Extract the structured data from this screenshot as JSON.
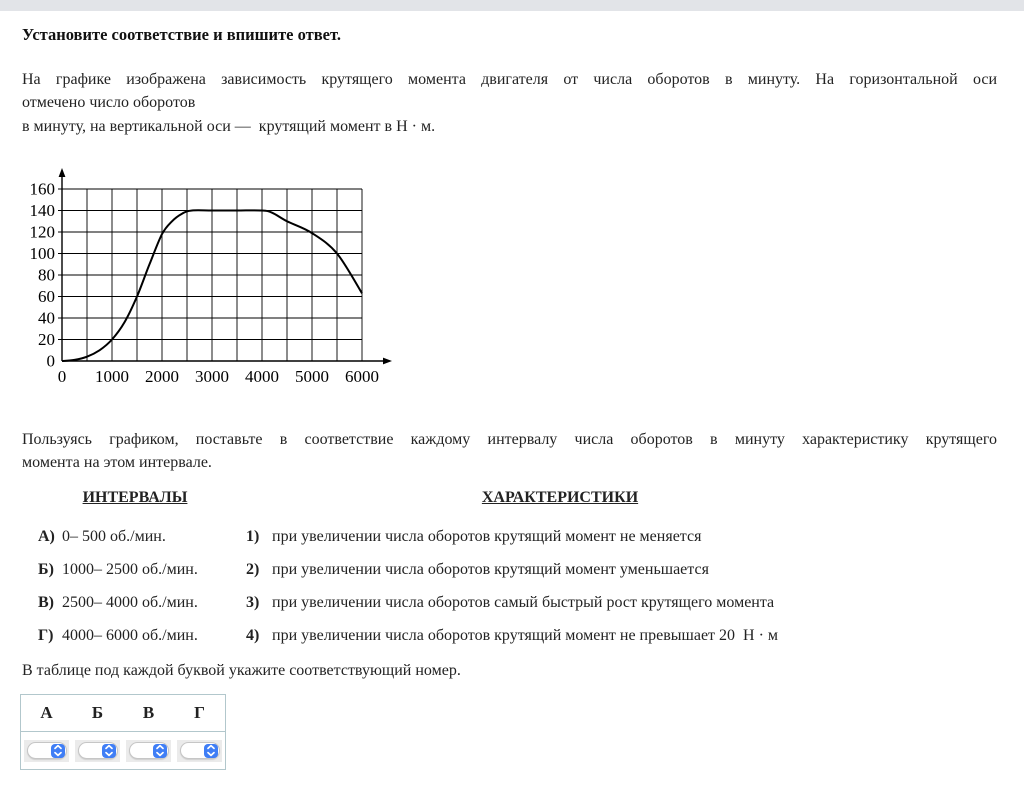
{
  "page": {
    "top_bar_color": "#e2e4e8",
    "background": "#ffffff",
    "accent_blue": "#3f7ef6",
    "table_border": "#b2c7cc"
  },
  "title": "Установите соответствие и впишите ответ.",
  "intro": {
    "line1": "На графике изображена зависимость крутящего момента двигателя от числа оборотов в минуту. На горизонтальной оси",
    "line2": "отмечено число оборотов",
    "line3": "в минуту, на вертикальной оси —  крутящий момент в Н · м."
  },
  "chart_data": {
    "type": "line",
    "title": "",
    "xlabel": "",
    "ylabel": "",
    "xlim": [
      0,
      6000
    ],
    "ylim": [
      0,
      160
    ],
    "x_ticks": [
      0,
      1000,
      2000,
      3000,
      4000,
      5000,
      6000
    ],
    "y_ticks": [
      0,
      20,
      40,
      60,
      80,
      100,
      120,
      140,
      160
    ],
    "x_grid_step": 500,
    "y_grid_step": 20,
    "grid": true,
    "legend": false,
    "series": [
      {
        "name": "крутящий момент, Н·м",
        "x": [
          0,
          250,
          500,
          750,
          1000,
          1250,
          1500,
          1750,
          2000,
          2200,
          2400,
          2600,
          3000,
          3500,
          4000,
          4200,
          4500,
          5000,
          5500,
          6000
        ],
        "y": [
          0,
          1,
          4,
          10,
          20,
          36,
          60,
          90,
          118,
          130,
          137,
          140,
          140,
          140,
          140,
          138,
          130,
          119,
          100,
          63
        ]
      }
    ]
  },
  "instruction": {
    "line1": "Пользуясь графиком, поставьте в соответствие каждому интервалу числа оборотов в минуту характеристику крутящего",
    "line2": "момента на этом интервале."
  },
  "columns": {
    "intervals_header": "ИНТЕРВАЛЫ",
    "characteristics_header": "ХАРАКТЕРИСТИКИ"
  },
  "intervals": [
    {
      "letter": "А)",
      "text": "0– 500 об./мин."
    },
    {
      "letter": "Б)",
      "text": "1000– 2500 об./мин."
    },
    {
      "letter": "В)",
      "text": "2500– 4000 об./мин."
    },
    {
      "letter": "Г)",
      "text": "4000– 6000 об./мин."
    }
  ],
  "characteristics": [
    {
      "number": "1)",
      "text": "при увеличении числа оборотов крутящий момент не меняется"
    },
    {
      "number": "2)",
      "text": "при увеличении числа оборотов крутящий момент уменьшается"
    },
    {
      "number": "3)",
      "text": "при увеличении числа оборотов самый быстрый рост крутящего момента"
    },
    {
      "number": "4)",
      "text": "при увеличении числа оборотов крутящий момент не превышает 20  Н · м"
    }
  ],
  "table_instruction": "В таблице под каждой буквой укажите соответствующий номер.",
  "answer_table": {
    "headers": [
      "А",
      "Б",
      "В",
      "Г"
    ],
    "selects": [
      {
        "label": "А",
        "value": ""
      },
      {
        "label": "Б",
        "value": ""
      },
      {
        "label": "В",
        "value": ""
      },
      {
        "label": "Г",
        "value": ""
      }
    ]
  }
}
